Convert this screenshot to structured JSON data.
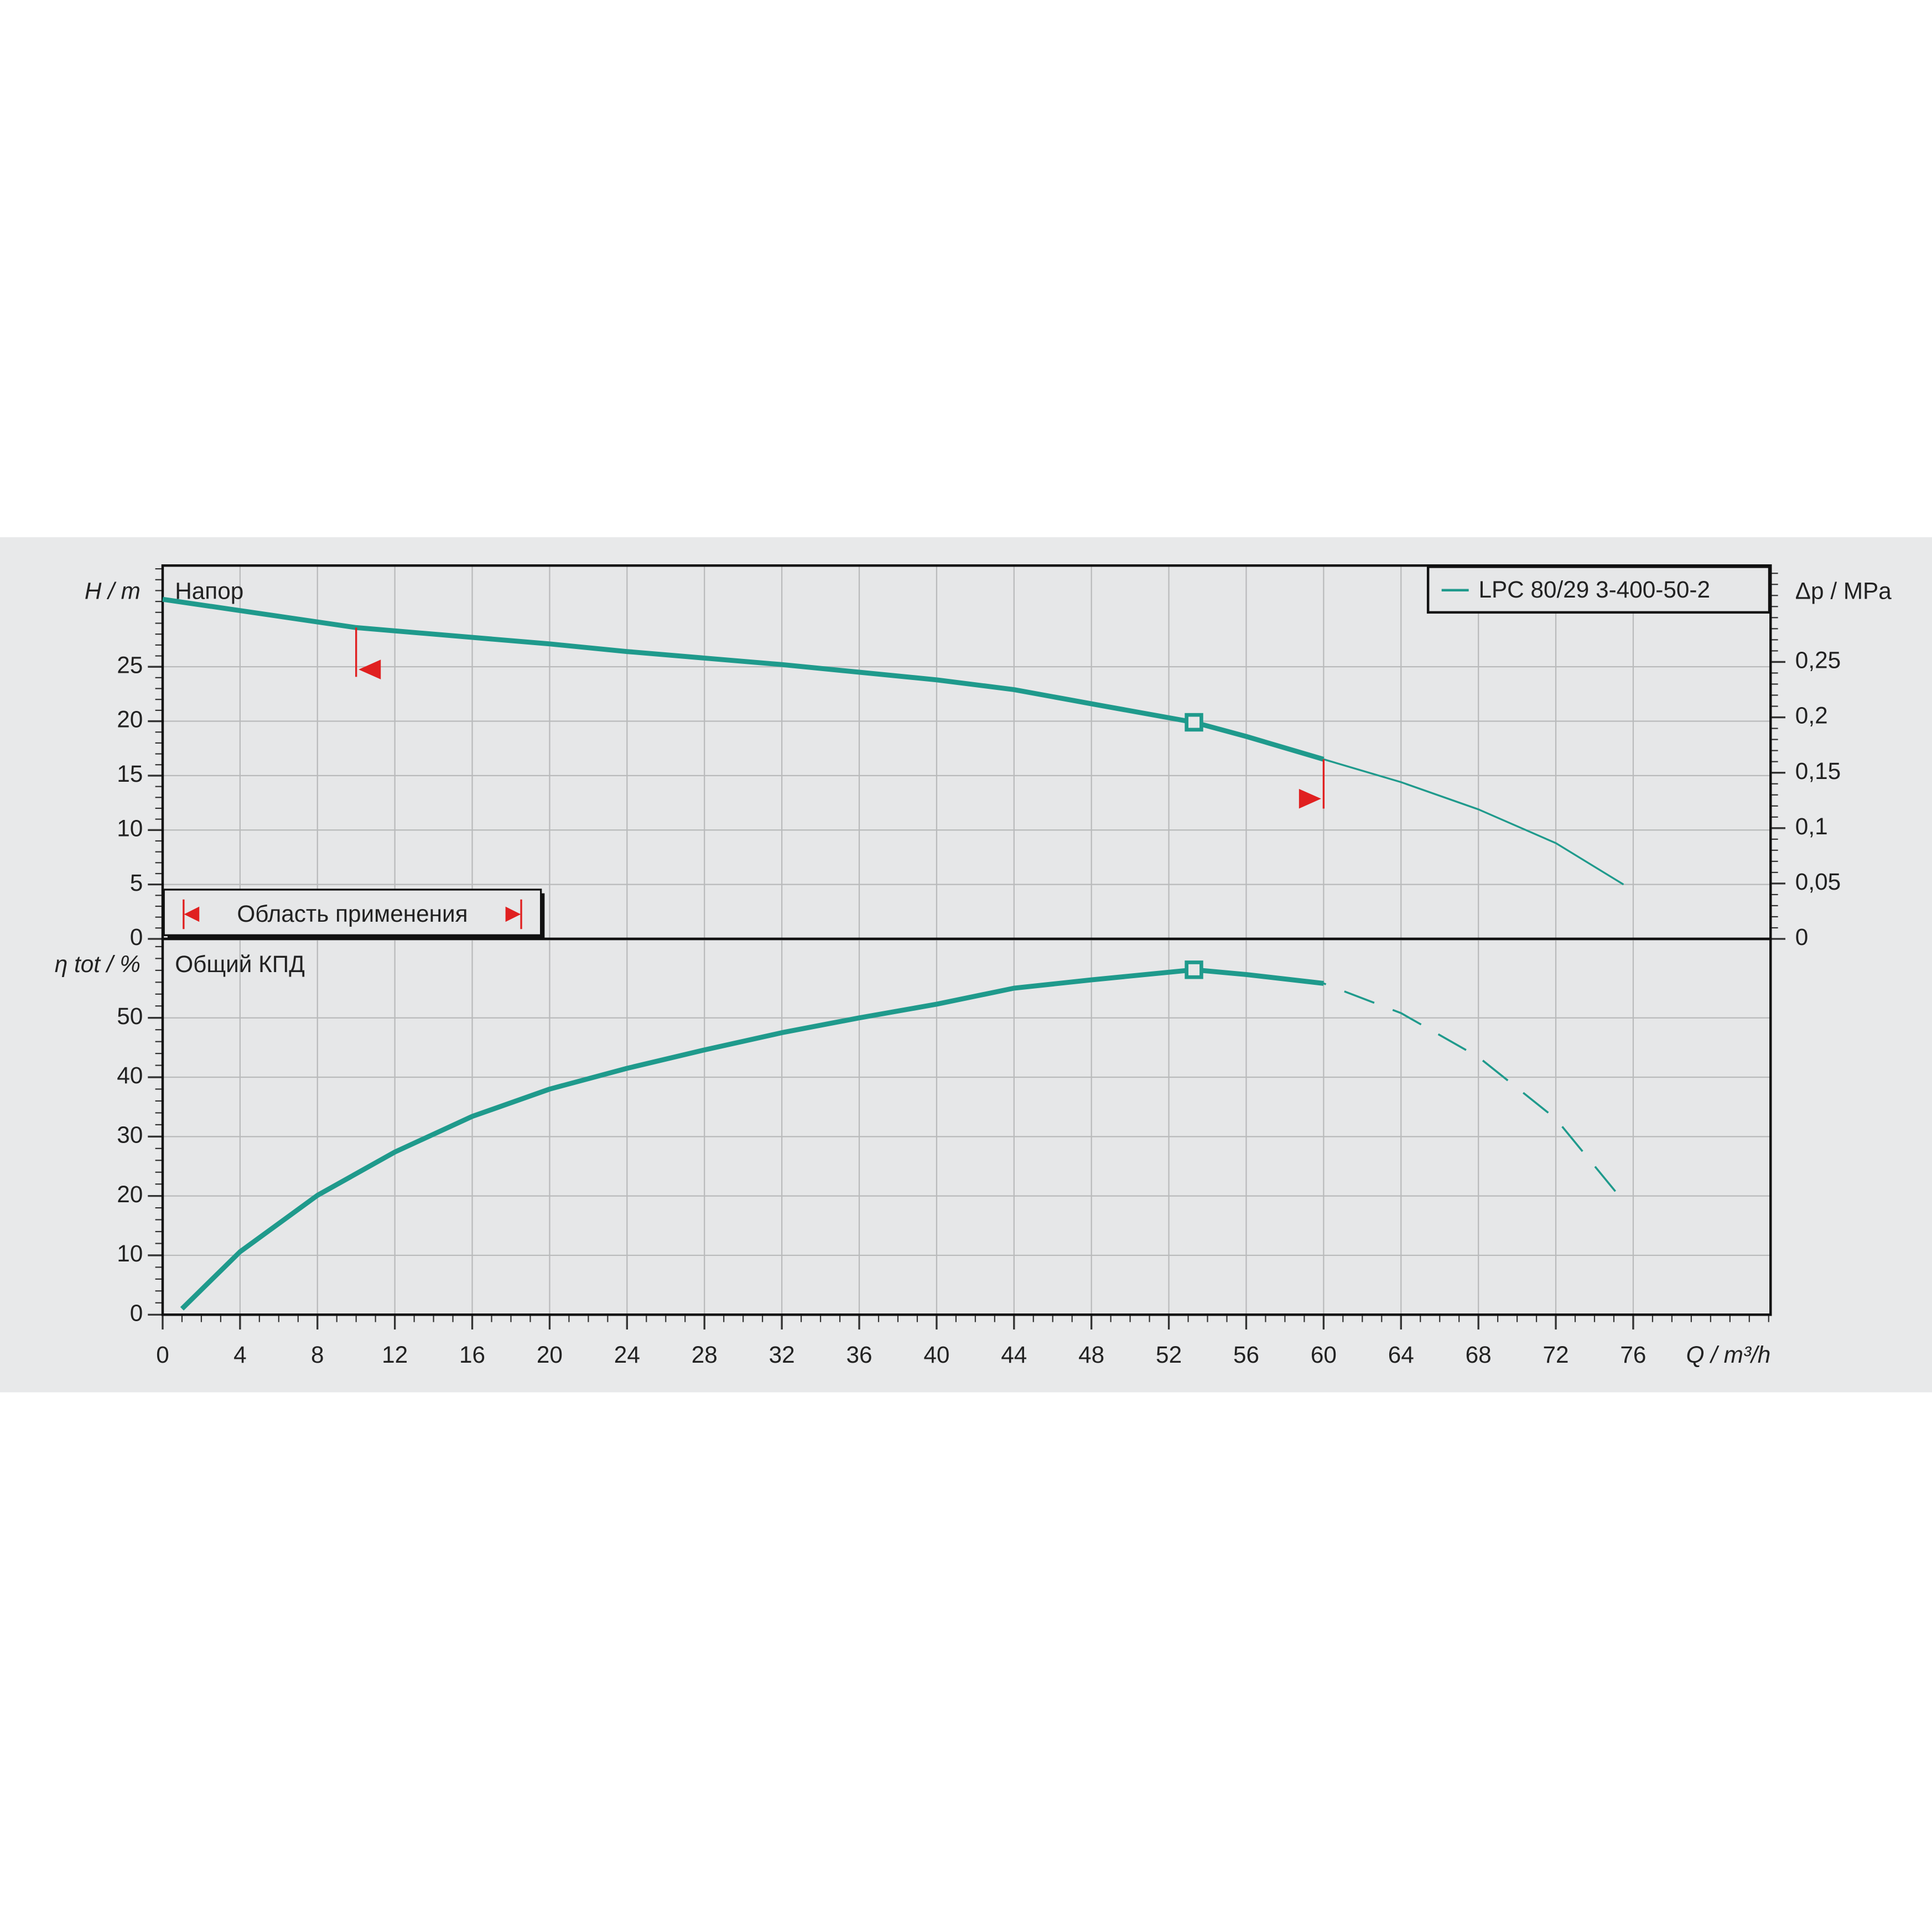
{
  "chart_data": [
    {
      "type": "line",
      "subtitle": "Напор",
      "ylabel": "H / m",
      "y2label": "Δp / MPa",
      "range_label": "Область применения",
      "range": [
        10,
        60
      ],
      "extrapolation_style": "thin",
      "xlim": [
        0,
        83.1
      ],
      "ylim": [
        0,
        34.3
      ],
      "yticks": [
        0,
        5,
        10,
        15,
        20,
        25
      ],
      "y2lim": [
        0,
        0.337
      ],
      "y2ticks": [
        0,
        {
          "value": 0.05,
          "label": "0,05"
        },
        {
          "value": 0.1,
          "label": "0,1"
        },
        {
          "value": 0.15,
          "label": "0,15"
        },
        {
          "value": 0.2,
          "label": "0,2"
        },
        {
          "value": 0.25,
          "label": "0,25"
        }
      ],
      "grid": true,
      "legend": "upper right",
      "duty_point": {
        "x": 53.3,
        "y": 19.9
      },
      "series": [
        {
          "name": "LPC 80/29 3-400-50-2",
          "color": "#1f9a8c",
          "x": [
            0,
            10,
            20,
            24,
            32,
            40,
            44,
            48,
            53.3,
            56,
            60,
            64,
            68,
            72,
            75.5
          ],
          "values": [
            31.2,
            28.6,
            27.1,
            26.4,
            25.2,
            23.8,
            22.9,
            21.6,
            19.9,
            18.6,
            16.5,
            14.4,
            11.9,
            8.8,
            5.0
          ]
        }
      ]
    },
    {
      "type": "line",
      "subtitle": "Общий КПД",
      "ylabel": "η tot / %",
      "xlabel": "Q / m³/h",
      "range": [
        10,
        60
      ],
      "extrapolation_style": "dashed",
      "xlim": [
        0,
        83.1
      ],
      "xticks": [
        0,
        4,
        8,
        12,
        16,
        20,
        24,
        28,
        32,
        36,
        40,
        44,
        48,
        52,
        56,
        60,
        64,
        68,
        72,
        76
      ],
      "ylim": [
        0,
        63.3
      ],
      "yticks": [
        0,
        10,
        20,
        30,
        40,
        50
      ],
      "grid": true,
      "duty_point": {
        "x": 53.3,
        "y": 58.1
      },
      "series": [
        {
          "color": "#1f9a8c",
          "x": [
            1,
            4,
            8,
            12,
            16,
            20,
            24,
            28,
            32,
            36,
            40,
            44,
            48,
            53.3,
            56,
            60,
            64,
            68,
            72,
            75.5
          ],
          "values": [
            1.0,
            10.6,
            20.1,
            27.4,
            33.4,
            38.0,
            41.5,
            44.6,
            47.5,
            50.0,
            52.3,
            55.0,
            56.4,
            58.1,
            57.3,
            55.8,
            50.8,
            43.4,
            33.0,
            19.1
          ]
        }
      ]
    }
  ]
}
